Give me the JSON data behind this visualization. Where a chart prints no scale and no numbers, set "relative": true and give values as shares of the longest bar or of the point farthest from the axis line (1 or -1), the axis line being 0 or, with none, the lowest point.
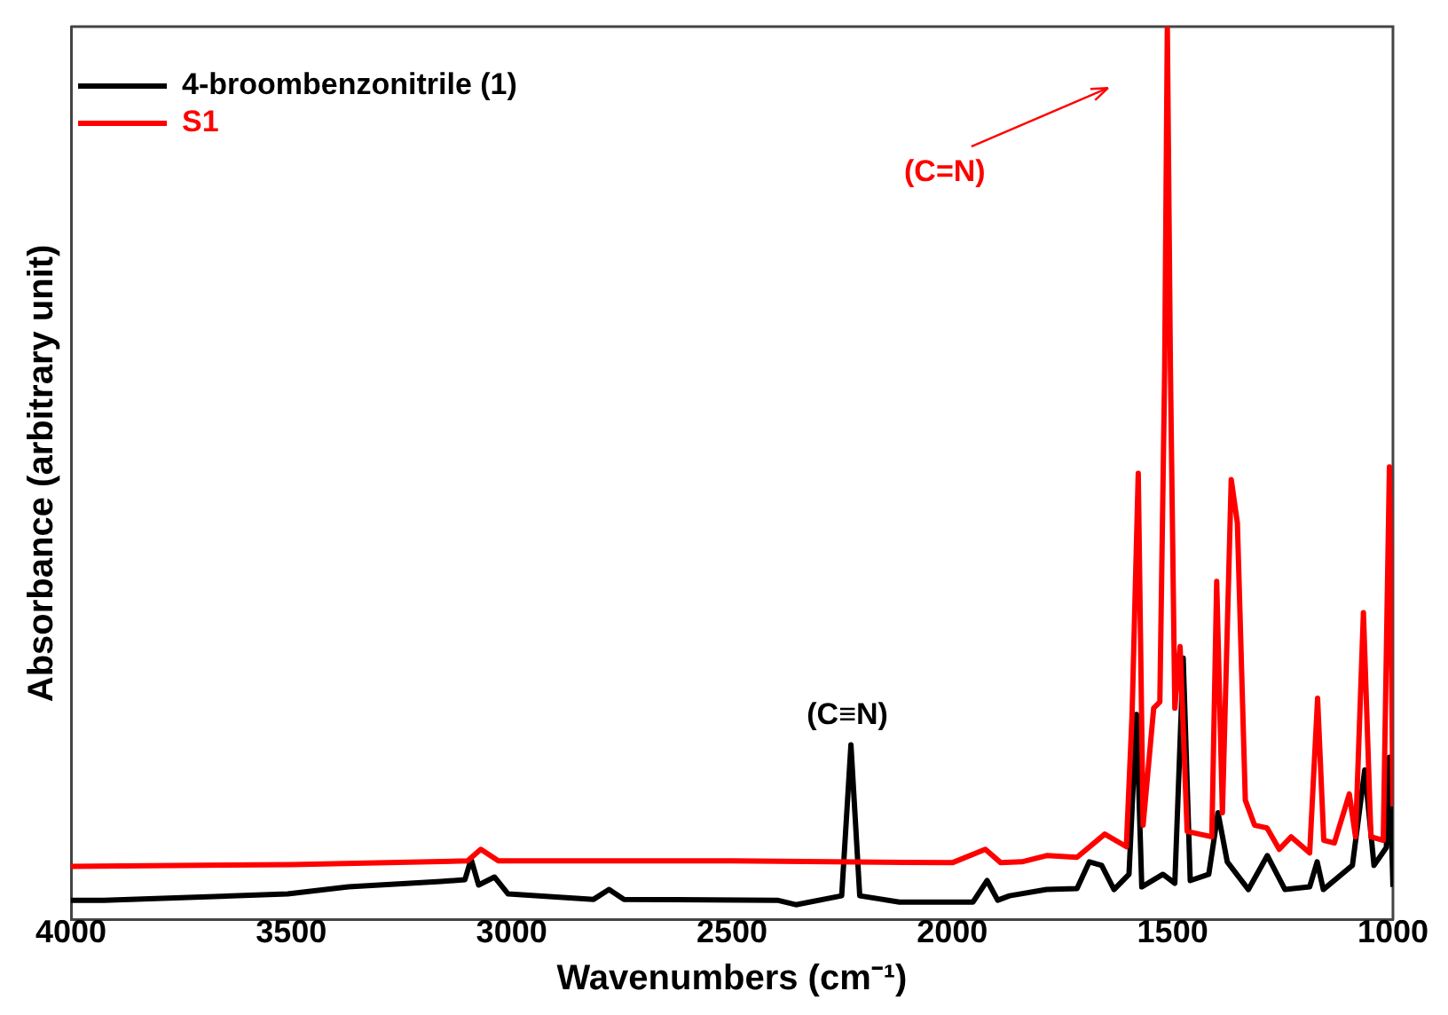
{
  "chart_data": {
    "type": "line",
    "relative": true,
    "xlabel": "Wavenumbers (cm⁻¹)",
    "ylabel": "Absorbance (arbitrary unit)",
    "xlim": [
      4000,
      1000
    ],
    "xticks": [
      4000,
      3500,
      3000,
      2500,
      2000,
      1500,
      1000
    ],
    "legend": "top left",
    "marker": "none",
    "line_style": "solid",
    "annotations": [
      {
        "text": "(C≡N)",
        "x": 2230,
        "y": 0.196
      },
      "(C=N)"
    ],
    "series": [
      {
        "name": "4-broombenzonitrile (1)",
        "color": "#000000",
        "x": [
          4000,
          3925,
          3508,
          3370,
          3161,
          3106,
          3092,
          3075,
          3039,
          3008,
          2814,
          2779,
          2745,
          2397,
          2355,
          2251,
          2230,
          2210,
          2120,
          1953,
          1921,
          1897,
          1870,
          1786,
          1717,
          1689,
          1661,
          1633,
          1599,
          1582,
          1570,
          1522,
          1495,
          1476,
          1460,
          1418,
          1397,
          1376,
          1328,
          1285,
          1245,
          1189,
          1172,
          1158,
          1092,
          1064,
          1043,
          1015,
          1008,
          1000
        ],
        "values": [
          0.022,
          0.022,
          0.029,
          0.037,
          0.043,
          0.045,
          0.068,
          0.039,
          0.048,
          0.029,
          0.023,
          0.034,
          0.023,
          0.022,
          0.017,
          0.027,
          0.196,
          0.027,
          0.02,
          0.02,
          0.044,
          0.022,
          0.027,
          0.034,
          0.035,
          0.065,
          0.061,
          0.034,
          0.051,
          0.23,
          0.037,
          0.051,
          0.041,
          0.293,
          0.044,
          0.051,
          0.12,
          0.065,
          0.034,
          0.072,
          0.034,
          0.037,
          0.065,
          0.034,
          0.061,
          0.168,
          0.061,
          0.081,
          0.182,
          0.037
        ]
      },
      {
        "name": "S1",
        "color": "#ff0000",
        "x": [
          4000,
          3500,
          3100,
          3070,
          3030,
          2500,
          2000,
          1925,
          1890,
          1842,
          1786,
          1717,
          1654,
          1605,
          1592,
          1578,
          1567,
          1543,
          1529,
          1518,
          1512,
          1505,
          1495,
          1483,
          1467,
          1411,
          1400,
          1387,
          1367,
          1353,
          1335,
          1314,
          1286,
          1258,
          1231,
          1189,
          1171,
          1157,
          1133,
          1099,
          1085,
          1067,
          1050,
          1022,
          1008,
          1000
        ],
        "values": [
          0.06,
          0.062,
          0.066,
          0.079,
          0.066,
          0.066,
          0.064,
          0.079,
          0.064,
          0.065,
          0.072,
          0.07,
          0.096,
          0.082,
          0.23,
          0.5,
          0.106,
          0.237,
          0.244,
          0.617,
          1.0,
          0.617,
          0.237,
          0.306,
          0.099,
          0.093,
          0.379,
          0.12,
          0.493,
          0.444,
          0.134,
          0.106,
          0.103,
          0.079,
          0.093,
          0.075,
          0.248,
          0.089,
          0.086,
          0.141,
          0.093,
          0.344,
          0.093,
          0.089,
          0.507,
          0.127
        ]
      }
    ]
  }
}
